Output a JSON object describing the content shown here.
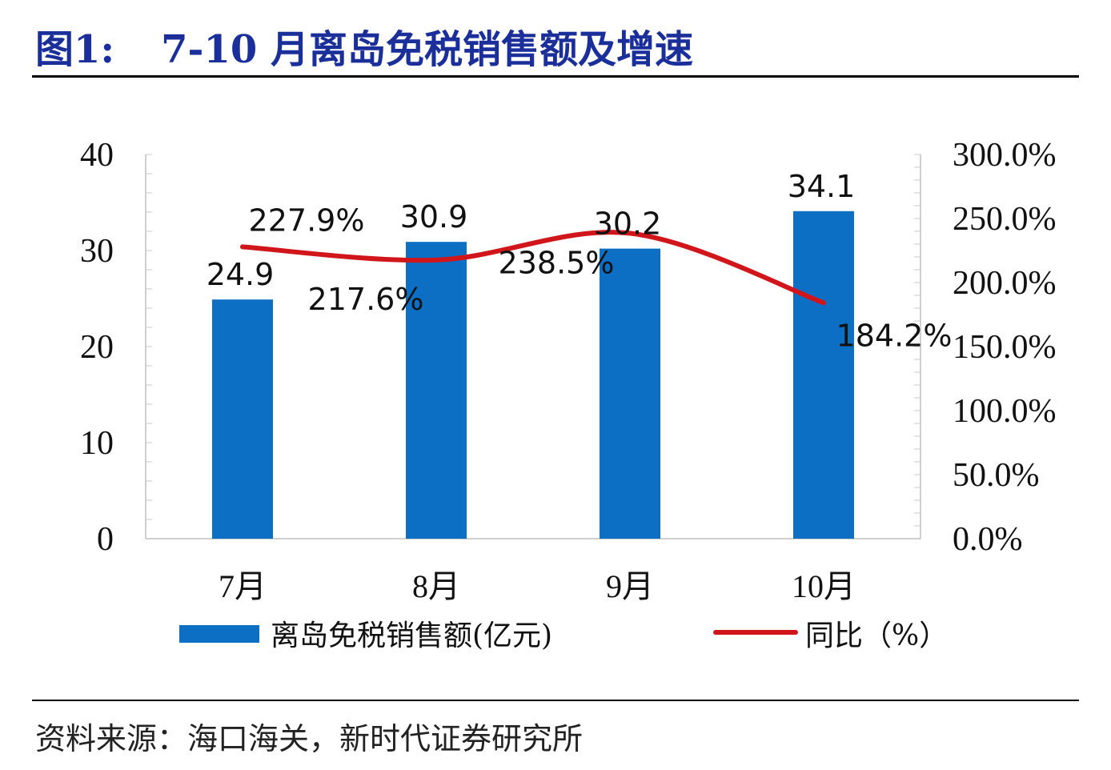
{
  "header": {
    "figure_label": "图1:",
    "title": "7-10 月离岛免税销售额及增速"
  },
  "source": "资料来源：海口海关，新时代证券研究所",
  "colors": {
    "bar": "#0d6fc4",
    "line": "#d0161b",
    "title": "#1b2f9b"
  },
  "chart_data": {
    "type": "bar",
    "categories": [
      "7月",
      "8月",
      "9月",
      "10月"
    ],
    "series": [
      {
        "name": "离岛免税销售额(亿元)",
        "type": "bar",
        "axis": "left",
        "values": [
          24.9,
          30.9,
          30.2,
          34.1
        ],
        "labels": [
          "24.9",
          "30.9",
          "30.2",
          "34.1"
        ]
      },
      {
        "name": "同比（%）",
        "type": "line",
        "axis": "right",
        "values": [
          227.9,
          217.6,
          238.5,
          184.2
        ],
        "labels": [
          "227.9%",
          "217.6%",
          "238.5%",
          "184.2%"
        ]
      }
    ],
    "y_left": {
      "ylim": [
        0,
        40
      ],
      "ticks": [
        "0",
        "10",
        "20",
        "30",
        "40"
      ]
    },
    "y_right": {
      "ylim": [
        0,
        300
      ],
      "ticks": [
        "0.0%",
        "50.0%",
        "100.0%",
        "150.0%",
        "200.0%",
        "250.0%",
        "300.0%"
      ]
    },
    "legend": "bottom"
  }
}
